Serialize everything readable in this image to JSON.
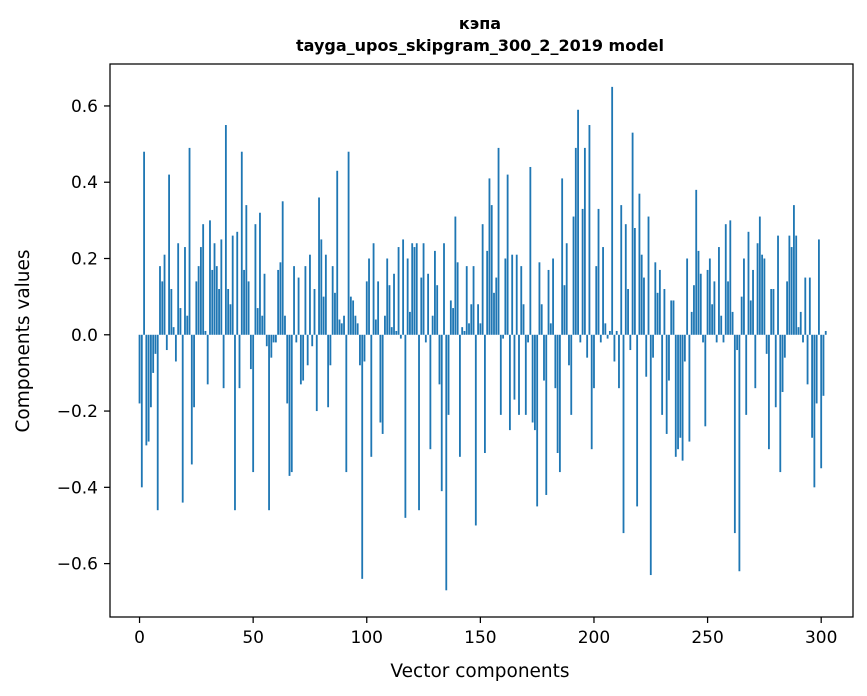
{
  "chart_data": {
    "type": "bar",
    "title": "кэпа",
    "subtitle": "tayga_upos_skipgram_300_2_2019 model",
    "xlabel": "Vector components",
    "ylabel": "Components values",
    "xlim": [
      -13,
      314
    ],
    "ylim": [
      -0.74,
      0.71
    ],
    "xticks": [
      0,
      50,
      100,
      150,
      200,
      250,
      300
    ],
    "xtick_labels": [
      "0",
      "50",
      "100",
      "150",
      "200",
      "250",
      "300"
    ],
    "yticks": [
      -0.6,
      -0.4,
      -0.2,
      0.0,
      0.2,
      0.4,
      0.6
    ],
    "ytick_labels": [
      "−0.6",
      "−0.4",
      "−0.2",
      "0.0",
      "0.2",
      "0.4",
      "0.6"
    ],
    "bar_color": "#1f77b4",
    "grid": false,
    "values": [
      -0.18,
      -0.4,
      0.48,
      -0.29,
      -0.28,
      -0.19,
      -0.1,
      -0.05,
      -0.46,
      0.18,
      0.14,
      0.21,
      -0.04,
      0.42,
      0.12,
      0.02,
      -0.07,
      0.24,
      0.07,
      -0.44,
      0.23,
      0.05,
      0.49,
      -0.34,
      -0.19,
      0.14,
      0.18,
      0.23,
      0.29,
      0.01,
      -0.13,
      0.3,
      0.17,
      0.24,
      0.18,
      0.12,
      0.25,
      -0.14,
      0.55,
      0.12,
      0.08,
      0.26,
      -0.46,
      0.27,
      -0.14,
      0.48,
      0.17,
      0.34,
      0.14,
      -0.09,
      -0.36,
      0.29,
      0.07,
      0.32,
      0.05,
      0.16,
      -0.03,
      -0.46,
      -0.06,
      -0.02,
      -0.02,
      0.17,
      0.19,
      0.35,
      0.05,
      -0.18,
      -0.37,
      -0.36,
      0.18,
      -0.02,
      0.15,
      -0.13,
      -0.12,
      0.18,
      -0.08,
      0.21,
      -0.03,
      0.12,
      -0.2,
      0.36,
      0.25,
      0.1,
      0.21,
      -0.19,
      -0.08,
      0.18,
      0.11,
      0.43,
      0.04,
      0.03,
      0.05,
      -0.36,
      0.48,
      0.1,
      0.09,
      0.05,
      0.03,
      -0.08,
      -0.64,
      -0.07,
      0.14,
      0.2,
      -0.32,
      0.24,
      0.04,
      0.14,
      -0.23,
      -0.26,
      0.05,
      0.2,
      0.13,
      0.02,
      0.16,
      0.01,
      0.23,
      -0.01,
      0.25,
      -0.48,
      0.2,
      0.06,
      0.24,
      0.23,
      0.24,
      -0.46,
      0.15,
      0.24,
      -0.02,
      0.16,
      -0.3,
      0.05,
      0.22,
      0.13,
      -0.13,
      -0.41,
      0.24,
      -0.67,
      -0.21,
      0.09,
      0.07,
      0.31,
      0.19,
      -0.32,
      0.02,
      0.01,
      0.18,
      0.03,
      0.08,
      0.18,
      -0.5,
      0.08,
      0.03,
      0.29,
      -0.31,
      0.22,
      0.41,
      0.34,
      0.11,
      0.15,
      0.49,
      -0.21,
      -0.01,
      0.2,
      0.42,
      -0.25,
      0.21,
      -0.17,
      0.21,
      -0.21,
      0.18,
      0.08,
      -0.21,
      -0.02,
      0.44,
      -0.23,
      -0.25,
      -0.45,
      0.19,
      0.08,
      -0.12,
      -0.42,
      0.17,
      0.03,
      0.2,
      -0.14,
      -0.31,
      -0.36,
      0.41,
      0.13,
      0.24,
      -0.08,
      -0.21,
      0.31,
      0.49,
      0.59,
      -0.02,
      0.33,
      0.49,
      -0.06,
      0.55,
      -0.3,
      -0.14,
      0.18,
      0.33,
      -0.02,
      0.23,
      0.03,
      -0.01,
      0.01,
      0.65,
      -0.07,
      0.01,
      -0.14,
      0.34,
      -0.52,
      0.29,
      0.12,
      -0.04,
      0.53,
      0.28,
      -0.45,
      0.37,
      0.21,
      0.15,
      -0.11,
      0.31,
      -0.63,
      -0.06,
      0.19,
      0.11,
      0.17,
      -0.21,
      0.12,
      -0.26,
      -0.12,
      0.09,
      0.09,
      -0.32,
      -0.3,
      -0.27,
      -0.33,
      -0.07,
      0.2,
      -0.28,
      0.06,
      0.13,
      0.38,
      0.22,
      0.16,
      -0.02,
      -0.24,
      0.17,
      0.2,
      0.08,
      0.14,
      -0.02,
      0.23,
      0.05,
      -0.02,
      0.29,
      0.14,
      0.3,
      0.06,
      -0.52,
      -0.04,
      -0.62,
      0.1,
      0.2,
      -0.21,
      0.27,
      0.09,
      0.17,
      -0.14,
      0.24,
      0.31,
      0.21,
      0.2,
      -0.05,
      -0.3,
      0.12,
      0.12,
      -0.19,
      0.26,
      -0.36,
      -0.15,
      -0.06,
      0.14,
      0.26,
      0.23,
      0.34,
      0.26,
      0.02,
      0.06,
      -0.02,
      0.15,
      -0.13,
      0.15,
      -0.27,
      -0.4,
      -0.18,
      0.25,
      -0.35,
      -0.16,
      0.01
    ]
  }
}
